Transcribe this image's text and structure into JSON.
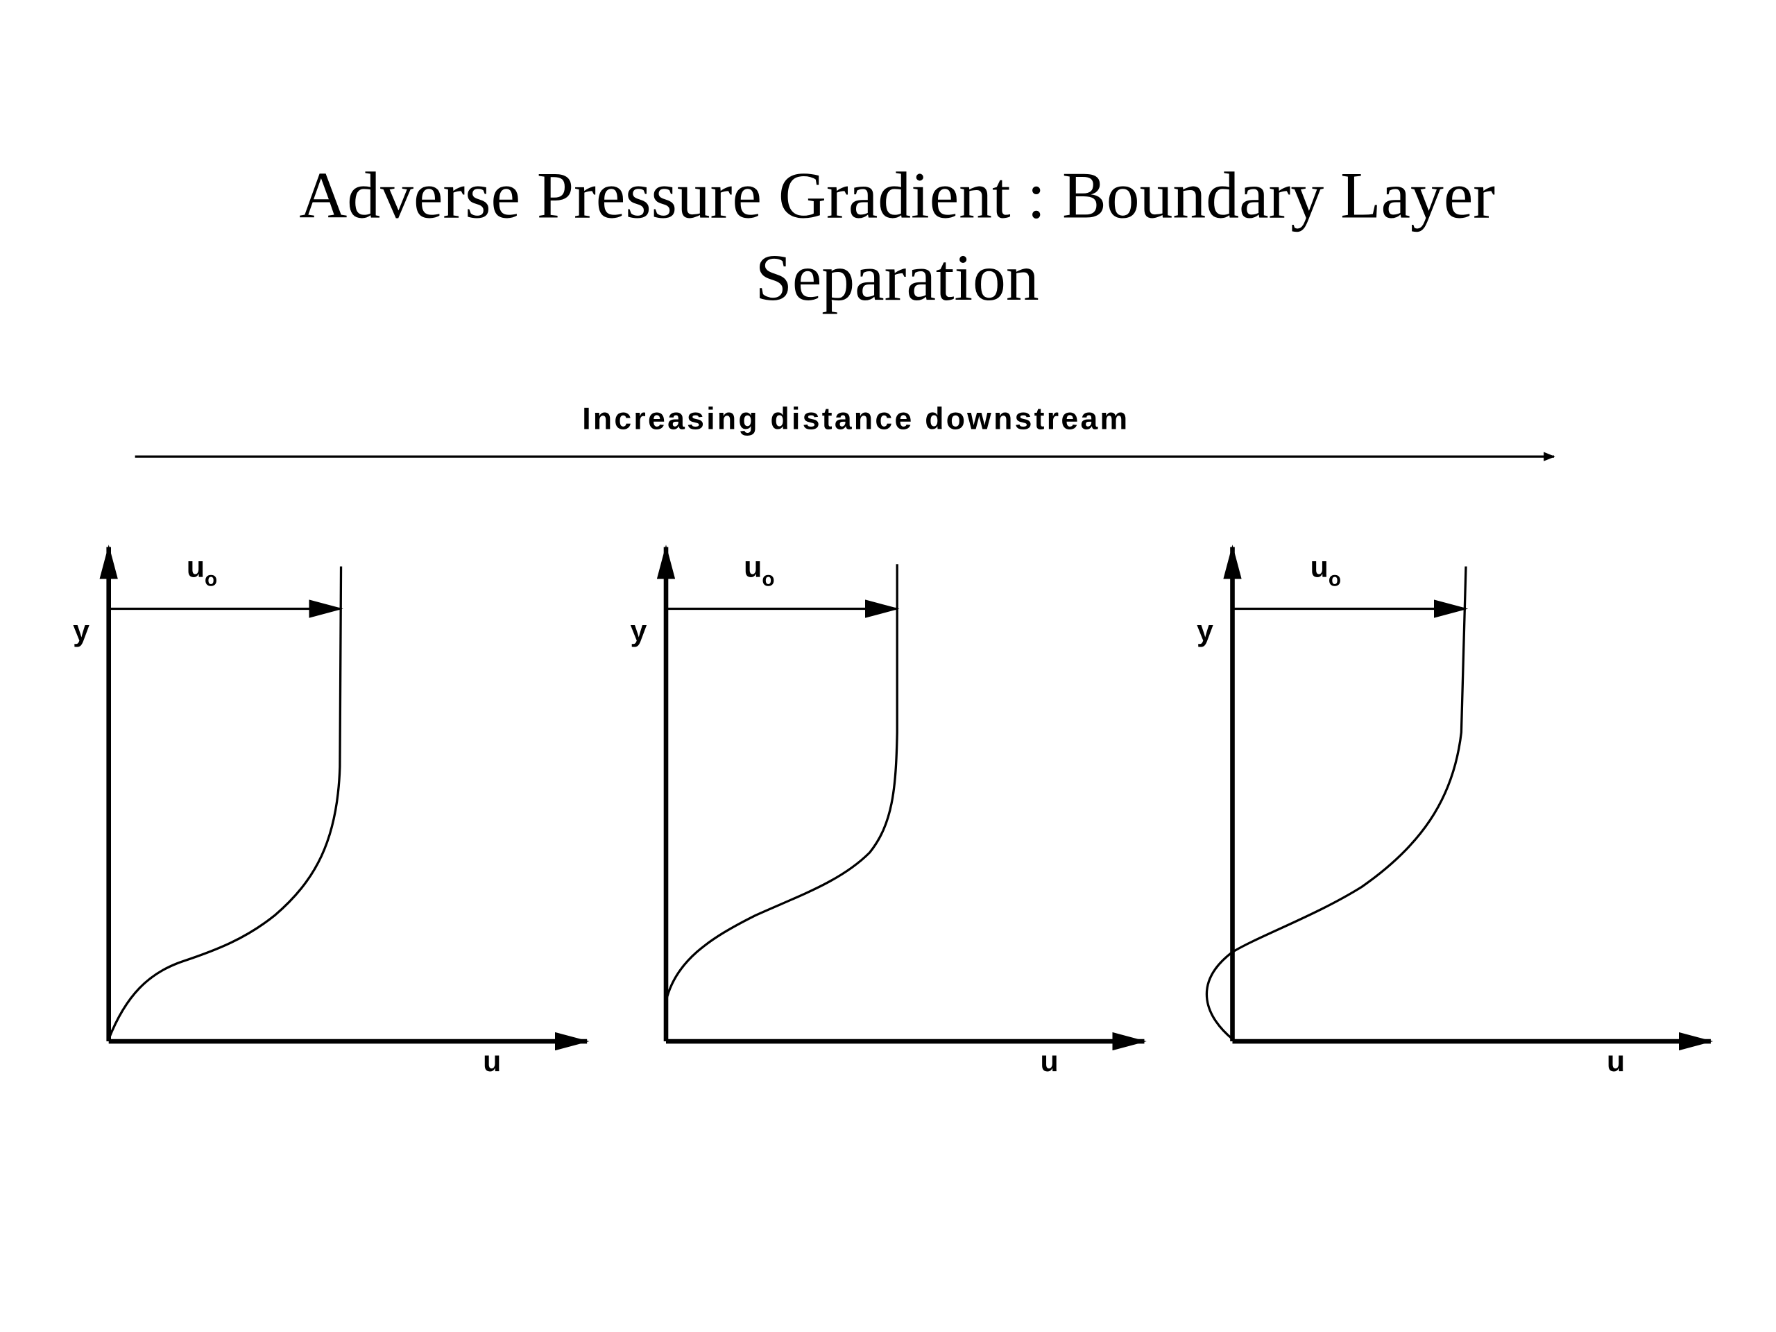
{
  "header": {
    "title_lines": [
      "Adverse Pressure Gradient : Boundary Layer",
      "Separation"
    ]
  },
  "diagram": {
    "direction_label": "Increasing distance downstream",
    "panels": [
      {
        "y_label": "y",
        "x_label": "u",
        "edge_velocity": {
          "symbol": "u",
          "subscript": "o"
        }
      },
      {
        "y_label": "y",
        "x_label": "u",
        "edge_velocity": {
          "symbol": "u",
          "subscript": "o"
        }
      },
      {
        "y_label": "y",
        "x_label": "u",
        "edge_velocity": {
          "symbol": "u",
          "subscript": "o"
        }
      }
    ]
  }
}
